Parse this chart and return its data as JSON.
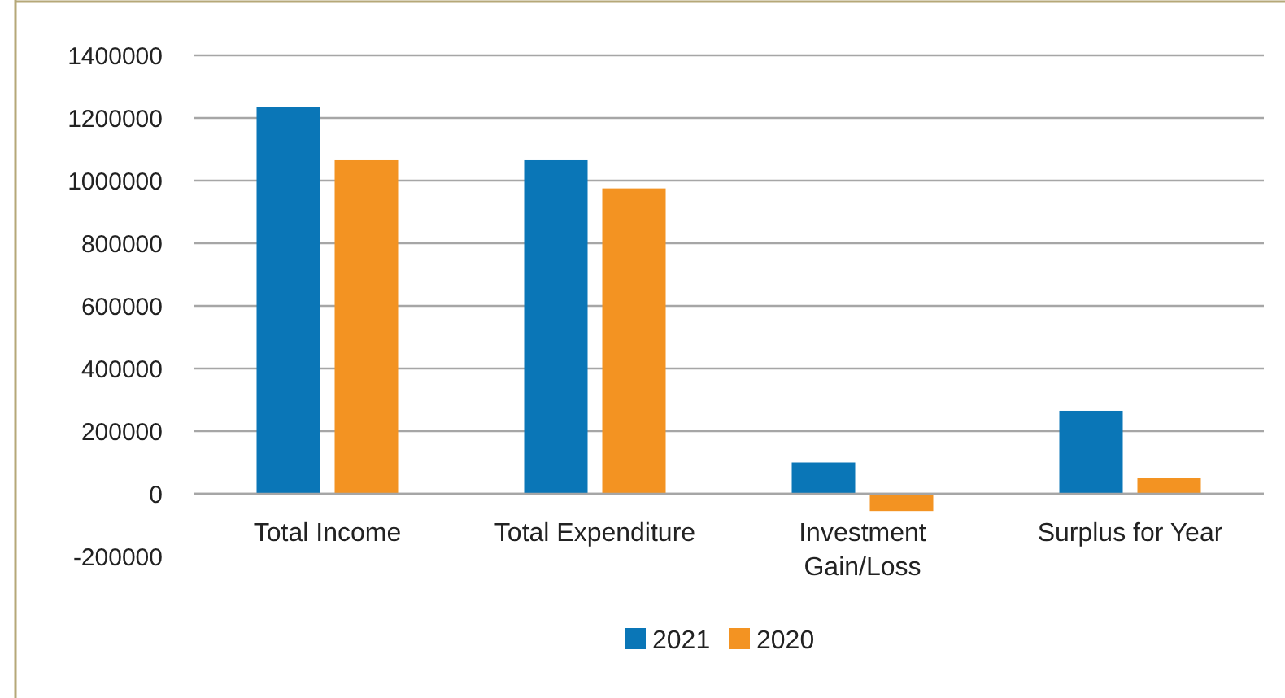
{
  "chart_data": {
    "type": "bar",
    "categories": [
      "Total Income",
      "Total Expenditure",
      "Investment Gain/Loss",
      "Surplus for Year"
    ],
    "series": [
      {
        "name": "2021",
        "color": "#0a76b7",
        "values": [
          1235000,
          1065000,
          100000,
          265000
        ]
      },
      {
        "name": "2020",
        "color": "#f39322",
        "values": [
          1065000,
          975000,
          -55000,
          50000
        ]
      }
    ],
    "ylim": [
      -200000,
      1400000
    ],
    "yticks": [
      -200000,
      0,
      200000,
      400000,
      600000,
      800000,
      1000000,
      1200000,
      1400000
    ],
    "grid": "y",
    "legend": "bottom"
  }
}
